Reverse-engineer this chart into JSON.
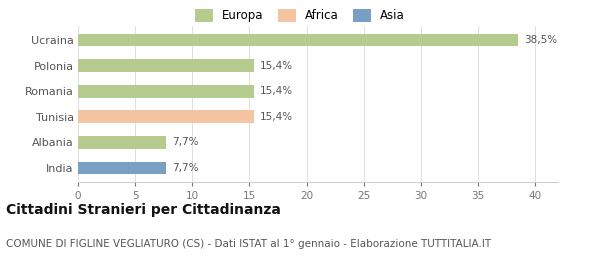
{
  "categories": [
    "Ucraina",
    "Polonia",
    "Romania",
    "Tunisia",
    "Albania",
    "India"
  ],
  "values": [
    38.5,
    15.4,
    15.4,
    15.4,
    7.7,
    7.7
  ],
  "labels": [
    "38,5%",
    "15,4%",
    "15,4%",
    "15,4%",
    "7,7%",
    "7,7%"
  ],
  "colors": [
    "#b5cc8e",
    "#b5cc8e",
    "#b5cc8e",
    "#f5c4a0",
    "#b5cc8e",
    "#7a9fc4"
  ],
  "legend": [
    {
      "label": "Europa",
      "color": "#b5cc8e"
    },
    {
      "label": "Africa",
      "color": "#f5c4a0"
    },
    {
      "label": "Asia",
      "color": "#7a9fc4"
    }
  ],
  "xlim": [
    0,
    42
  ],
  "xticks": [
    0,
    5,
    10,
    15,
    20,
    25,
    30,
    35,
    40
  ],
  "title": "Cittadini Stranieri per Cittadinanza",
  "subtitle": "COMUNE DI FIGLINE VEGLIATURO (CS) - Dati ISTAT al 1° gennaio - Elaborazione TUTTITALIA.IT",
  "title_fontsize": 10,
  "subtitle_fontsize": 7.5,
  "background_color": "#ffffff",
  "bar_height": 0.5
}
